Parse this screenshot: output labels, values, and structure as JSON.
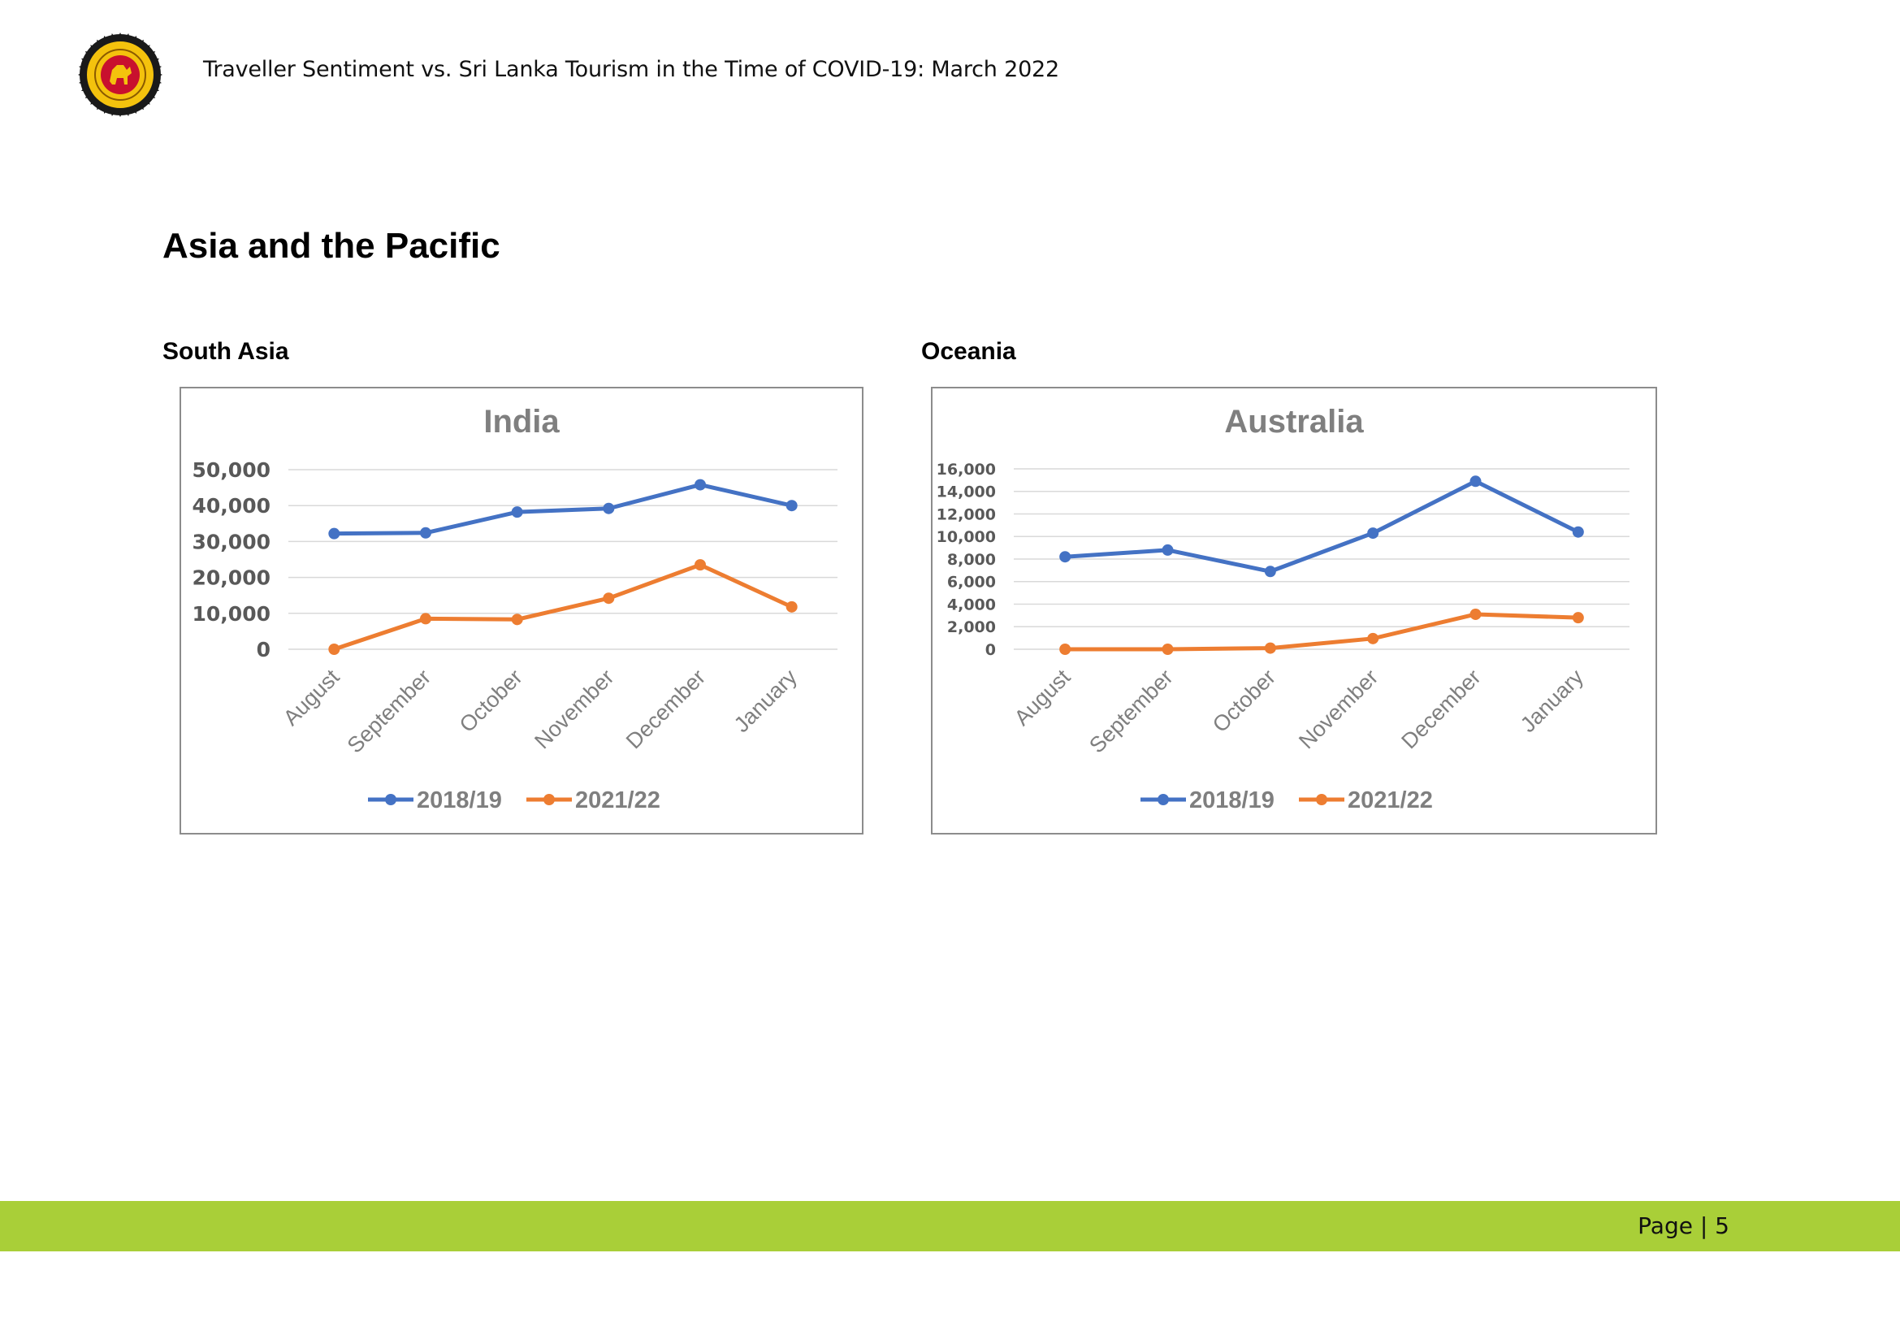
{
  "header": {
    "title": "Traveller Sentiment vs. Sri Lanka Tourism in the Time of COVID-19: March 2022",
    "logo_icon": "sri-lanka-emblem-icon"
  },
  "section_title": "Asia and the Pacific",
  "subsections": [
    "South Asia",
    "Oceania"
  ],
  "footer": {
    "page_label": "Page | 5",
    "bar_color": "#a9cf38"
  },
  "colors": {
    "series_2018": "#4472c4",
    "series_2021": "#ed7d31",
    "axis_text": "#7f7f7f",
    "grid": "#d9d9d9"
  },
  "chart_data": [
    {
      "type": "line",
      "title": "India",
      "categories": [
        "August",
        "September",
        "October",
        "November",
        "December",
        "January"
      ],
      "series": [
        {
          "name": "2018/19",
          "values": [
            32200,
            32400,
            38200,
            39200,
            45800,
            40000
          ]
        },
        {
          "name": "2021/22",
          "values": [
            0,
            8500,
            8300,
            14200,
            23500,
            11800
          ]
        }
      ],
      "yticks": [
        "0",
        "10,000",
        "20,000",
        "30,000",
        "40,000",
        "50,000"
      ],
      "ylim": [
        0,
        50000
      ],
      "grid": true,
      "legend": "bottom"
    },
    {
      "type": "line",
      "title": "Australia",
      "categories": [
        "August",
        "September",
        "October",
        "November",
        "December",
        "January"
      ],
      "series": [
        {
          "name": "2018/19",
          "values": [
            8200,
            8800,
            6900,
            10300,
            14900,
            10400
          ]
        },
        {
          "name": "2021/22",
          "values": [
            0,
            0,
            100,
            950,
            3100,
            2800
          ]
        }
      ],
      "yticks": [
        "0",
        "2,000",
        "4,000",
        "6,000",
        "8,000",
        "10,000",
        "12,000",
        "14,000",
        "16,000"
      ],
      "ylim": [
        0,
        16000
      ],
      "grid": true,
      "legend": "bottom"
    }
  ]
}
